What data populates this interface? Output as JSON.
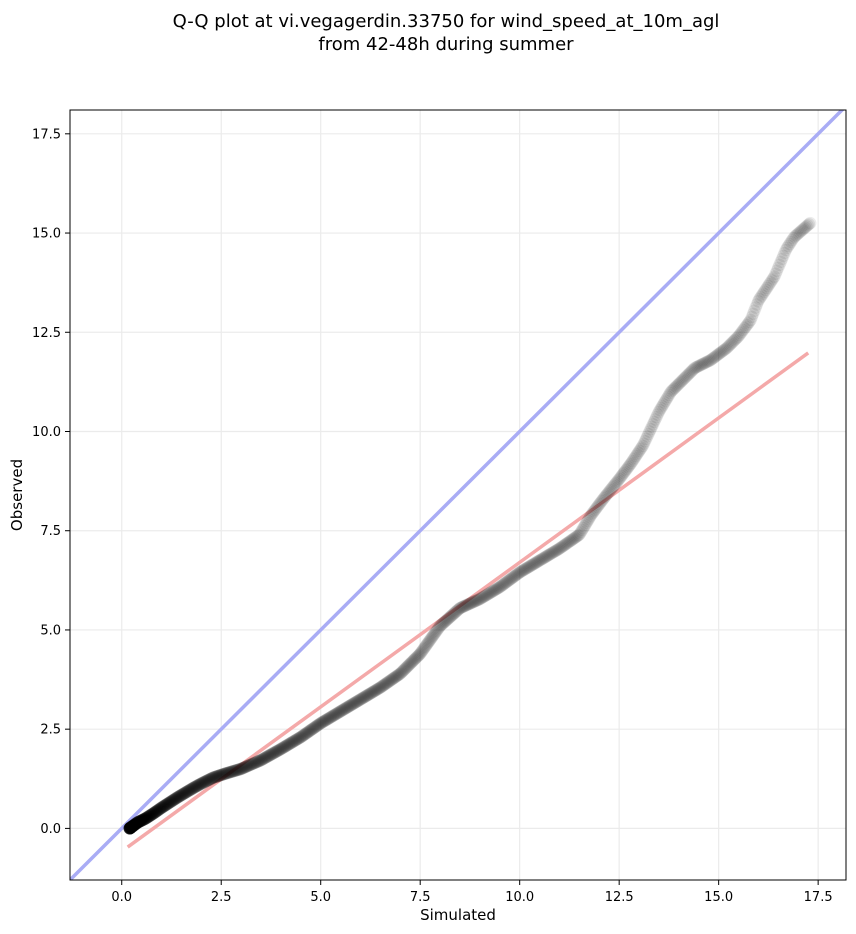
{
  "chart_data": {
    "type": "scatter",
    "title": [
      "Q-Q plot at vi.vegagerdin.33750 for wind_speed_at_10m_agl",
      "from 42-48h during summer"
    ],
    "xlabel": "Simulated",
    "ylabel": "Observed",
    "xlim": [
      -1.3,
      18.2
    ],
    "ylim": [
      -1.3,
      18.1
    ],
    "xticks": [
      0.0,
      2.5,
      5.0,
      7.5,
      10.0,
      12.5,
      15.0,
      17.5
    ],
    "yticks": [
      0.0,
      2.5,
      5.0,
      7.5,
      10.0,
      12.5,
      15.0,
      17.5
    ],
    "grid": true,
    "identity_line": {
      "x": [
        -1.3,
        18.2
      ],
      "y": [
        -1.3,
        18.2
      ],
      "color": "#a9acf5"
    },
    "fit_line": {
      "x": [
        0.15,
        17.25
      ],
      "y": [
        -0.47,
        11.98
      ],
      "color": "#f4a9a9"
    },
    "point_color": "#000000",
    "quantile_curve": [
      [
        0.2,
        0.0
      ],
      [
        0.4,
        0.15
      ],
      [
        0.6,
        0.25
      ],
      [
        0.8,
        0.38
      ],
      [
        1.0,
        0.52
      ],
      [
        1.2,
        0.65
      ],
      [
        1.4,
        0.78
      ],
      [
        1.6,
        0.9
      ],
      [
        1.8,
        1.02
      ],
      [
        2.0,
        1.13
      ],
      [
        2.3,
        1.28
      ],
      [
        2.6,
        1.38
      ],
      [
        3.0,
        1.5
      ],
      [
        3.5,
        1.72
      ],
      [
        4.0,
        2.0
      ],
      [
        4.5,
        2.3
      ],
      [
        5.0,
        2.65
      ],
      [
        5.5,
        2.95
      ],
      [
        6.0,
        3.25
      ],
      [
        6.5,
        3.55
      ],
      [
        7.0,
        3.9
      ],
      [
        7.5,
        4.4
      ],
      [
        8.0,
        5.1
      ],
      [
        8.5,
        5.55
      ],
      [
        9.0,
        5.78
      ],
      [
        9.5,
        6.08
      ],
      [
        10.0,
        6.45
      ],
      [
        10.5,
        6.75
      ],
      [
        11.0,
        7.05
      ],
      [
        11.5,
        7.4
      ],
      [
        11.8,
        7.9
      ],
      [
        12.1,
        8.3
      ],
      [
        12.5,
        8.8
      ],
      [
        12.8,
        9.2
      ],
      [
        13.1,
        9.65
      ],
      [
        13.5,
        10.5
      ],
      [
        13.8,
        11.0
      ],
      [
        14.0,
        11.2
      ],
      [
        14.4,
        11.6
      ],
      [
        14.8,
        11.8
      ],
      [
        15.2,
        12.1
      ],
      [
        15.5,
        12.4
      ],
      [
        15.8,
        12.8
      ],
      [
        16.0,
        13.3
      ],
      [
        16.2,
        13.6
      ],
      [
        16.4,
        13.9
      ],
      [
        16.7,
        14.6
      ],
      [
        16.9,
        14.9
      ],
      [
        17.3,
        15.25
      ]
    ],
    "quantile_count": 1000
  }
}
